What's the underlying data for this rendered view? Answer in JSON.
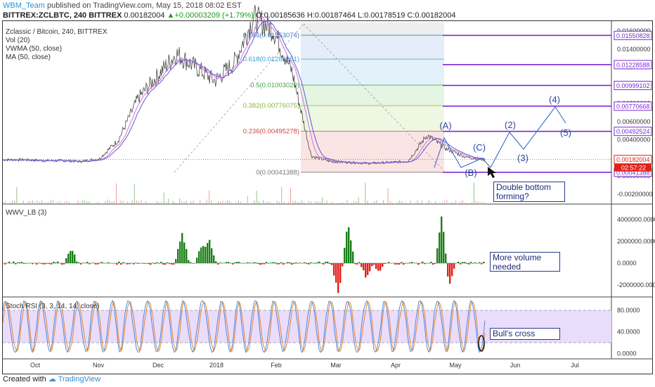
{
  "header": {
    "user": "WBM_Team",
    "published": "published on TradingView.com, May 15, 2018 08:02 EST",
    "symbol": "BITTREX:ZCLBTC, 240 BITTREX",
    "last": "0.00182004",
    "change": "▲+0.00003209 (+1.79%)",
    "ohlc_o": "O:0.00185636",
    "ohlc_h": "H:0.00187464",
    "ohlc_l": "L:0.00178519",
    "ohlc_c": "C:0.00182004"
  },
  "legend_main": [
    "Zclassic / Bitcoin, 240, BITTREX",
    "Vol (20)",
    "VWMA (50, close)",
    "MA (50, close)"
  ],
  "legend_vol": "WWV_LB (3)",
  "legend_rsi": "Stoch RSI (3, 3, 14, 14, close)",
  "annotations": {
    "double_bottom": "Double bottom forming?",
    "volume": "More volume needed",
    "bulls_cross": "Bull's cross"
  },
  "footer": {
    "created": "Created with",
    "brand": "TradingView"
  },
  "colors": {
    "bull": "#1a7f1a",
    "bear": "#e0201b",
    "fib_line": "#7b2ad6",
    "wave": "#3b6cc9",
    "rsi_band": "#d9c6f5"
  },
  "chart_data": [
    {
      "type": "line",
      "title": "Zclassic / Bitcoin, 240, BITTREX",
      "x_ticks": [
        "Oct",
        "Nov",
        "Dec",
        "2018",
        "Feb",
        "Mar",
        "Apr",
        "May",
        "Jun",
        "Jul"
      ],
      "y_ticks": [
        "0.01600000",
        "0.01400000",
        "0.01200000",
        "0.01000000",
        "0.00800000",
        "0.00600000",
        "0.00400000",
        "0.00200000",
        "0.00000000",
        "-0.00200000"
      ],
      "price_labels": [
        "0.01550828",
        "0.01228588",
        "0.00999102",
        "0.00770668",
        "0.00492524",
        "0.00182004",
        "02:57:22",
        "0.00041388"
      ],
      "fib_levels": [
        {
          "label": "0.786(0.01553074)",
          "value": 0.01553074
        },
        {
          "label": "0.618(0.01289651)",
          "value": 0.01289651
        },
        {
          "label": "0.5(0.01003020)",
          "value": 0.0100302
        },
        {
          "label": "0.382(0.00776075)",
          "value": 0.00776075
        },
        {
          "label": "0.236(0.00495278)",
          "value": 0.00495278
        },
        {
          "label": "0(0.00041388)",
          "value": 0.00041388
        }
      ],
      "wave_labels": [
        "(A)",
        "(B)",
        "(C)",
        "(2)",
        "(3)",
        "(4)",
        "(5)"
      ],
      "series": [
        {
          "values": [
            0.0018,
            0.0018,
            0.0017,
            0.0017,
            0.0016,
            0.0019,
            0.004,
            0.0085,
            0.011,
            0.0135,
            0.012,
            0.0105,
            0.0125,
            0.0175,
            0.0162,
            0.0115,
            0.0022,
            0.0016,
            0.0015,
            0.0014,
            0.0015,
            0.0016,
            0.0045,
            0.003,
            0.0021,
            0.0018
          ]
        }
      ]
    },
    {
      "type": "bar",
      "title": "WWV_LB (3)",
      "y_ticks": [
        "4000000.0000",
        "2000000.0000",
        "0.0000",
        "-2000000.0000"
      ]
    },
    {
      "type": "line",
      "title": "Stoch RSI (3, 3, 14, 14, close)",
      "y_ticks": [
        "80.0000",
        "40.0000",
        "0.0000"
      ],
      "band": [
        20,
        80
      ]
    }
  ]
}
